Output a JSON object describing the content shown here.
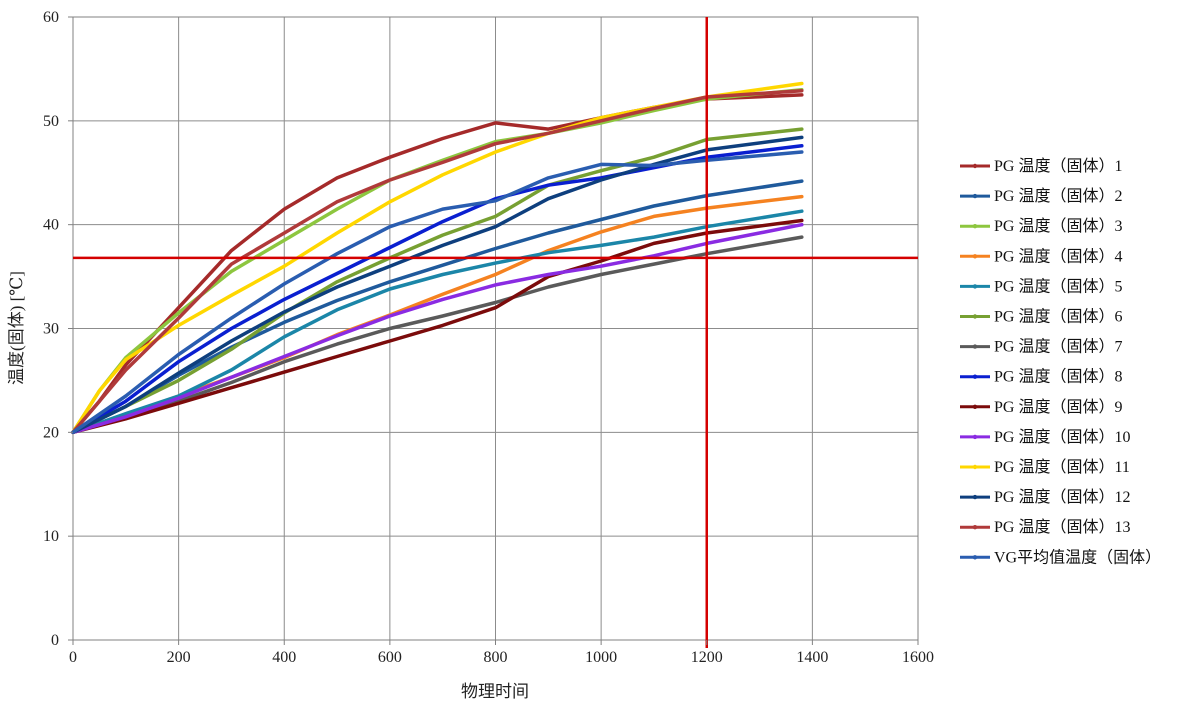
{
  "chart_data": {
    "type": "line",
    "xlabel": "物理时间",
    "ylabel": "温度(固体) [℃]",
    "xlim": [
      0,
      1600
    ],
    "ylim": [
      0,
      60
    ],
    "xticks": [
      "0",
      "200",
      "400",
      "600",
      "800",
      "1000",
      "1200",
      "1400",
      "1600"
    ],
    "yticks": [
      "0",
      "10",
      "20",
      "30",
      "40",
      "50",
      "60"
    ],
    "grid": true,
    "legend_position": "right",
    "reference_lines": {
      "x": 1200,
      "y": 36.8,
      "color": "#d40000"
    },
    "series": [
      {
        "name": "PG 温度（固体）1",
        "color": "#a52a2a",
        "points": [
          [
            0,
            20
          ],
          [
            50,
            23
          ],
          [
            100,
            26.5
          ],
          [
            200,
            32
          ],
          [
            300,
            37.5
          ],
          [
            400,
            41.5
          ],
          [
            500,
            44.5
          ],
          [
            600,
            46.5
          ],
          [
            700,
            48.3
          ],
          [
            800,
            49.8
          ],
          [
            900,
            49.2
          ],
          [
            1000,
            50.3
          ],
          [
            1100,
            51.3
          ],
          [
            1200,
            52.1
          ],
          [
            1380,
            52.5
          ]
        ]
      },
      {
        "name": "PG 温度（固体）2",
        "color": "#1f5a9c",
        "points": [
          [
            0,
            20
          ],
          [
            100,
            22.5
          ],
          [
            200,
            25.5
          ],
          [
            300,
            28.2
          ],
          [
            400,
            30.6
          ],
          [
            500,
            32.7
          ],
          [
            600,
            34.5
          ],
          [
            700,
            36.1
          ],
          [
            800,
            37.7
          ],
          [
            900,
            39.2
          ],
          [
            1000,
            40.5
          ],
          [
            1100,
            41.8
          ],
          [
            1200,
            42.8
          ],
          [
            1380,
            44.2
          ]
        ]
      },
      {
        "name": "PG 温度（固体）3",
        "color": "#8dc63f",
        "points": [
          [
            0,
            20
          ],
          [
            50,
            24
          ],
          [
            100,
            27.2
          ],
          [
            200,
            31.5
          ],
          [
            300,
            35.5
          ],
          [
            400,
            38.5
          ],
          [
            500,
            41.5
          ],
          [
            600,
            44.3
          ],
          [
            700,
            46.2
          ],
          [
            800,
            48
          ],
          [
            900,
            48.8
          ],
          [
            1000,
            49.8
          ],
          [
            1100,
            51
          ],
          [
            1200,
            52.1
          ],
          [
            1380,
            53
          ]
        ]
      },
      {
        "name": "PG 温度（固体）4",
        "color": "#f58220",
        "points": [
          [
            0,
            20
          ],
          [
            100,
            21.7
          ],
          [
            200,
            23.5
          ],
          [
            300,
            25.3
          ],
          [
            400,
            27.2
          ],
          [
            500,
            29.4
          ],
          [
            600,
            31.3
          ],
          [
            700,
            33.3
          ],
          [
            800,
            35.2
          ],
          [
            900,
            37.5
          ],
          [
            1000,
            39.3
          ],
          [
            1100,
            40.8
          ],
          [
            1200,
            41.6
          ],
          [
            1380,
            42.7
          ]
        ]
      },
      {
        "name": "PG 温度（固体）5",
        "color": "#1b86a8",
        "points": [
          [
            0,
            20
          ],
          [
            100,
            21.8
          ],
          [
            200,
            23.5
          ],
          [
            300,
            26
          ],
          [
            400,
            29.2
          ],
          [
            500,
            31.8
          ],
          [
            600,
            33.8
          ],
          [
            700,
            35.2
          ],
          [
            800,
            36.3
          ],
          [
            900,
            37.3
          ],
          [
            1000,
            38
          ],
          [
            1100,
            38.8
          ],
          [
            1200,
            39.8
          ],
          [
            1380,
            41.3
          ]
        ]
      },
      {
        "name": "PG 温度（固体）6",
        "color": "#77a032",
        "points": [
          [
            0,
            20
          ],
          [
            100,
            22.5
          ],
          [
            200,
            25
          ],
          [
            300,
            28
          ],
          [
            400,
            31.5
          ],
          [
            500,
            34.5
          ],
          [
            600,
            36.8
          ],
          [
            700,
            39
          ],
          [
            800,
            40.8
          ],
          [
            900,
            43.8
          ],
          [
            1000,
            45.2
          ],
          [
            1100,
            46.5
          ],
          [
            1200,
            48.2
          ],
          [
            1380,
            49.2
          ]
        ]
      },
      {
        "name": "PG 温度（固体）7",
        "color": "#5a5a5a",
        "points": [
          [
            0,
            20
          ],
          [
            100,
            21.5
          ],
          [
            200,
            23
          ],
          [
            300,
            24.8
          ],
          [
            400,
            26.8
          ],
          [
            500,
            28.5
          ],
          [
            600,
            30
          ],
          [
            700,
            31.2
          ],
          [
            800,
            32.5
          ],
          [
            900,
            34
          ],
          [
            1000,
            35.2
          ],
          [
            1100,
            36.2
          ],
          [
            1200,
            37.2
          ],
          [
            1380,
            38.8
          ]
        ]
      },
      {
        "name": "PG 温度（固体）8",
        "color": "#0a1fd0",
        "points": [
          [
            0,
            20
          ],
          [
            100,
            23
          ],
          [
            200,
            26.8
          ],
          [
            300,
            30
          ],
          [
            400,
            32.8
          ],
          [
            500,
            35.3
          ],
          [
            600,
            37.8
          ],
          [
            700,
            40.3
          ],
          [
            800,
            42.5
          ],
          [
            900,
            43.8
          ],
          [
            1000,
            44.5
          ],
          [
            1100,
            45.5
          ],
          [
            1200,
            46.5
          ],
          [
            1380,
            47.6
          ]
        ]
      },
      {
        "name": "PG 温度（固体）9",
        "color": "#7b0b0b",
        "points": [
          [
            0,
            20
          ],
          [
            100,
            21.3
          ],
          [
            200,
            22.8
          ],
          [
            300,
            24.3
          ],
          [
            400,
            25.8
          ],
          [
            500,
            27.3
          ],
          [
            600,
            28.8
          ],
          [
            700,
            30.3
          ],
          [
            800,
            32
          ],
          [
            900,
            35
          ],
          [
            1000,
            36.5
          ],
          [
            1100,
            38.2
          ],
          [
            1200,
            39.2
          ],
          [
            1380,
            40.4
          ]
        ]
      },
      {
        "name": "PG 温度（固体）10",
        "color": "#8a2be2",
        "points": [
          [
            0,
            20
          ],
          [
            100,
            21.5
          ],
          [
            200,
            23.3
          ],
          [
            300,
            25.3
          ],
          [
            400,
            27.3
          ],
          [
            500,
            29.3
          ],
          [
            600,
            31.2
          ],
          [
            700,
            32.8
          ],
          [
            800,
            34.2
          ],
          [
            900,
            35.2
          ],
          [
            1000,
            36
          ],
          [
            1100,
            37
          ],
          [
            1200,
            38.2
          ],
          [
            1380,
            40
          ]
        ]
      },
      {
        "name": "PG 温度（固体）11",
        "color": "#ffd700",
        "points": [
          [
            0,
            20
          ],
          [
            50,
            24
          ],
          [
            100,
            27
          ],
          [
            200,
            30.3
          ],
          [
            300,
            33.2
          ],
          [
            400,
            36
          ],
          [
            500,
            39.2
          ],
          [
            600,
            42.2
          ],
          [
            700,
            44.8
          ],
          [
            800,
            47
          ],
          [
            900,
            48.8
          ],
          [
            1000,
            50.3
          ],
          [
            1100,
            51.3
          ],
          [
            1200,
            52.3
          ],
          [
            1380,
            53.6
          ]
        ]
      },
      {
        "name": "PG 温度（固体）12",
        "color": "#0e3f7e",
        "points": [
          [
            0,
            20
          ],
          [
            100,
            22.5
          ],
          [
            200,
            25.7
          ],
          [
            300,
            28.8
          ],
          [
            400,
            31.6
          ],
          [
            500,
            34
          ],
          [
            600,
            36
          ],
          [
            700,
            38
          ],
          [
            800,
            39.8
          ],
          [
            900,
            42.5
          ],
          [
            1000,
            44.3
          ],
          [
            1100,
            45.8
          ],
          [
            1200,
            47.2
          ],
          [
            1380,
            48.4
          ]
        ]
      },
      {
        "name": "PG 温度（固体）13",
        "color": "#b03a3a",
        "points": [
          [
            0,
            20
          ],
          [
            50,
            23
          ],
          [
            100,
            26
          ],
          [
            200,
            31
          ],
          [
            300,
            36.2
          ],
          [
            400,
            39.2
          ],
          [
            500,
            42.2
          ],
          [
            600,
            44.3
          ],
          [
            700,
            46
          ],
          [
            800,
            47.8
          ],
          [
            900,
            48.8
          ],
          [
            1000,
            50
          ],
          [
            1100,
            51.2
          ],
          [
            1200,
            52.3
          ],
          [
            1380,
            52.9
          ]
        ]
      },
      {
        "name": "VG平均值温度（固体）",
        "color": "#2a5db0",
        "points": [
          [
            0,
            20
          ],
          [
            100,
            23.5
          ],
          [
            200,
            27.5
          ],
          [
            300,
            31
          ],
          [
            400,
            34.3
          ],
          [
            500,
            37.2
          ],
          [
            600,
            39.8
          ],
          [
            700,
            41.5
          ],
          [
            800,
            42.3
          ],
          [
            900,
            44.5
          ],
          [
            1000,
            45.8
          ],
          [
            1100,
            45.7
          ],
          [
            1200,
            46.2
          ],
          [
            1380,
            47
          ]
        ]
      }
    ]
  }
}
